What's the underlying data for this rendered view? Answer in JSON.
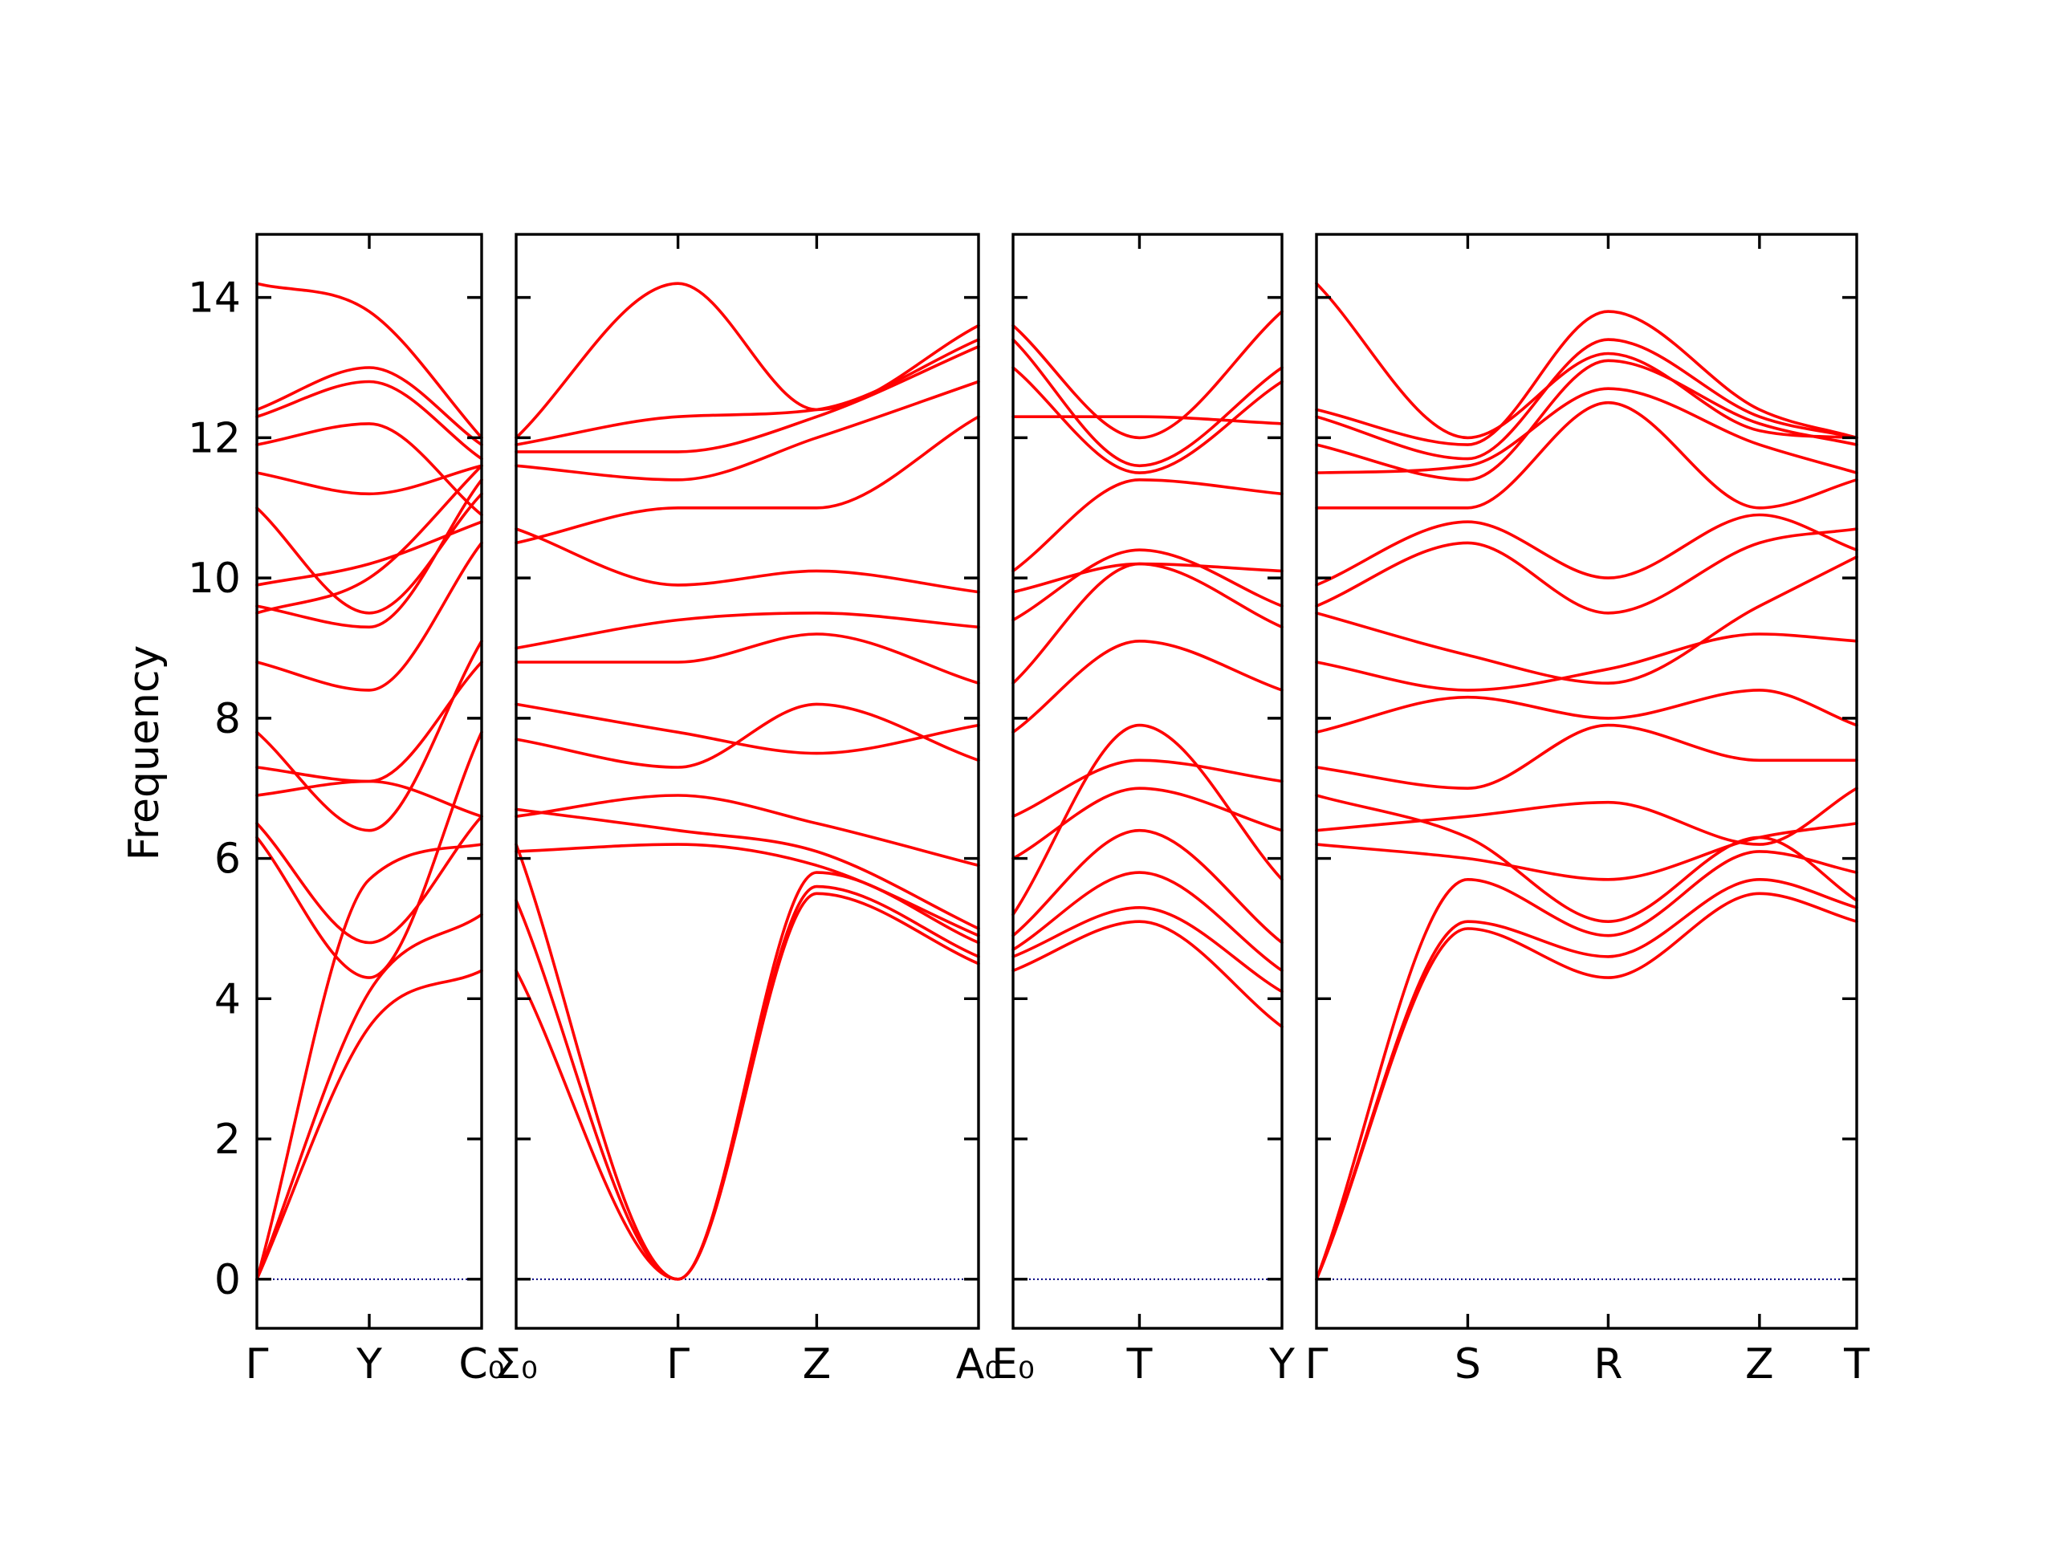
{
  "chart_data": {
    "type": "line",
    "ylabel": "Frequency",
    "ylim": [
      -0.7,
      14.9
    ],
    "yticks": [
      0,
      2,
      4,
      6,
      8,
      10,
      12,
      14
    ],
    "grid": false,
    "colors": {
      "band": "#ff0000",
      "zero": "#00007f",
      "axes": "#000000"
    },
    "panels": [
      {
        "labels": [
          "Γ",
          "Y",
          "C₀"
        ],
        "label_positions": [
          0,
          0.5,
          1
        ],
        "tick_positions": [
          0.5
        ],
        "bands": [
          {
            "x": [
              0,
              0.5,
              1
            ],
            "y": [
              0,
              3.6,
              4.4
            ]
          },
          {
            "x": [
              0,
              0.5,
              1
            ],
            "y": [
              0,
              4.1,
              5.2
            ]
          },
          {
            "x": [
              0,
              0.5,
              1
            ],
            "y": [
              0,
              5.7,
              6.2
            ]
          },
          {
            "x": [
              0,
              0.5,
              1
            ],
            "y": [
              6.5,
              4.8,
              6.6
            ]
          },
          {
            "x": [
              0,
              0.5,
              1
            ],
            "y": [
              6.3,
              4.3,
              7.8
            ]
          },
          {
            "x": [
              0,
              0.5,
              1
            ],
            "y": [
              6.9,
              7.1,
              6.6
            ]
          },
          {
            "x": [
              0,
              0.5,
              1
            ],
            "y": [
              7.3,
              7.1,
              8.8
            ]
          },
          {
            "x": [
              0,
              0.5,
              1
            ],
            "y": [
              7.8,
              6.4,
              9.1
            ]
          },
          {
            "x": [
              0,
              0.5,
              1
            ],
            "y": [
              8.8,
              8.4,
              10.5
            ]
          },
          {
            "x": [
              0,
              0.5,
              1
            ],
            "y": [
              9.5,
              10.0,
              11.6
            ]
          },
          {
            "x": [
              0,
              0.5,
              1
            ],
            "y": [
              9.6,
              9.3,
              11.4
            ]
          },
          {
            "x": [
              0,
              0.5,
              1
            ],
            "y": [
              9.9,
              10.2,
              10.8
            ]
          },
          {
            "x": [
              0,
              0.5,
              1
            ],
            "y": [
              11.0,
              9.5,
              11.2
            ]
          },
          {
            "x": [
              0,
              0.5,
              1
            ],
            "y": [
              11.5,
              11.2,
              11.6
            ]
          },
          {
            "x": [
              0,
              0.5,
              1
            ],
            "y": [
              11.9,
              12.2,
              10.9
            ]
          },
          {
            "x": [
              0,
              0.5,
              1
            ],
            "y": [
              12.3,
              12.8,
              11.7
            ]
          },
          {
            "x": [
              0,
              0.5,
              1
            ],
            "y": [
              12.4,
              13.0,
              11.9
            ]
          },
          {
            "x": [
              0,
              0.5,
              1
            ],
            "y": [
              14.2,
              13.8,
              12.0
            ]
          }
        ]
      },
      {
        "labels": [
          "Σ₀",
          "Γ",
          "Z",
          "A₀"
        ],
        "label_positions": [
          0,
          0.35,
          0.65,
          1
        ],
        "tick_positions": [
          0.35,
          0.65
        ],
        "bands": [
          {
            "x": [
              0,
              0.35,
              0.65,
              1
            ],
            "y": [
              4.4,
              0,
              5.5,
              4.5
            ]
          },
          {
            "x": [
              0,
              0.35,
              0.65,
              1
            ],
            "y": [
              5.4,
              0,
              5.6,
              4.6
            ]
          },
          {
            "x": [
              0,
              0.35,
              0.65,
              1
            ],
            "y": [
              6.2,
              0,
              5.8,
              4.8
            ]
          },
          {
            "x": [
              0,
              0.35,
              0.65,
              1
            ],
            "y": [
              6.1,
              6.2,
              5.9,
              4.9
            ]
          },
          {
            "x": [
              0,
              0.35,
              0.65,
              1
            ],
            "y": [
              6.7,
              6.4,
              6.1,
              5.0
            ]
          },
          {
            "x": [
              0,
              0.35,
              0.65,
              1
            ],
            "y": [
              6.6,
              6.9,
              6.5,
              5.9
            ]
          },
          {
            "x": [
              0,
              0.35,
              0.65,
              1
            ],
            "y": [
              7.7,
              7.3,
              8.2,
              7.4
            ]
          },
          {
            "x": [
              0,
              0.35,
              0.65,
              1
            ],
            "y": [
              8.2,
              7.8,
              7.5,
              7.9
            ]
          },
          {
            "x": [
              0,
              0.35,
              0.65,
              1
            ],
            "y": [
              8.8,
              8.8,
              9.2,
              8.5
            ]
          },
          {
            "x": [
              0,
              0.35,
              0.65,
              1
            ],
            "y": [
              9.0,
              9.4,
              9.5,
              9.3
            ]
          },
          {
            "x": [
              0,
              0.35,
              0.65,
              1
            ],
            "y": [
              10.7,
              9.9,
              10.1,
              9.8
            ]
          },
          {
            "x": [
              0,
              0.35,
              0.65,
              1
            ],
            "y": [
              10.5,
              11.0,
              11.0,
              12.3
            ]
          },
          {
            "x": [
              0,
              0.35,
              0.65,
              1
            ],
            "y": [
              11.6,
              11.4,
              12.0,
              12.8
            ]
          },
          {
            "x": [
              0,
              0.35,
              0.65,
              1
            ],
            "y": [
              11.8,
              11.8,
              12.3,
              13.3
            ]
          },
          {
            "x": [
              0,
              0.35,
              0.65,
              1
            ],
            "y": [
              11.9,
              12.3,
              12.4,
              13.4
            ]
          },
          {
            "x": [
              0,
              0.35,
              0.65,
              1
            ],
            "y": [
              12.0,
              14.2,
              12.4,
              13.6
            ]
          }
        ]
      },
      {
        "labels": [
          "E₀",
          "T",
          "Y"
        ],
        "label_positions": [
          0,
          0.47,
          1
        ],
        "tick_positions": [
          0.47
        ],
        "bands": [
          {
            "x": [
              0,
              0.47,
              1
            ],
            "y": [
              4.4,
              5.1,
              3.6
            ]
          },
          {
            "x": [
              0,
              0.47,
              1
            ],
            "y": [
              4.6,
              5.3,
              4.1
            ]
          },
          {
            "x": [
              0,
              0.47,
              1
            ],
            "y": [
              4.7,
              5.8,
              4.4
            ]
          },
          {
            "x": [
              0,
              0.47,
              1
            ],
            "y": [
              4.9,
              6.4,
              4.8
            ]
          },
          {
            "x": [
              0,
              0.47,
              1
            ],
            "y": [
              5.2,
              7.9,
              5.7
            ]
          },
          {
            "x": [
              0,
              0.47,
              1
            ],
            "y": [
              6.0,
              7.0,
              6.4
            ]
          },
          {
            "x": [
              0,
              0.47,
              1
            ],
            "y": [
              6.6,
              7.4,
              7.1
            ]
          },
          {
            "x": [
              0,
              0.47,
              1
            ],
            "y": [
              7.8,
              9.1,
              8.4
            ]
          },
          {
            "x": [
              0,
              0.47,
              1
            ],
            "y": [
              8.5,
              10.2,
              9.3
            ]
          },
          {
            "x": [
              0,
              0.47,
              1
            ],
            "y": [
              9.4,
              10.4,
              9.6
            ]
          },
          {
            "x": [
              0,
              0.47,
              1
            ],
            "y": [
              9.8,
              10.2,
              10.1
            ]
          },
          {
            "x": [
              0,
              0.47,
              1
            ],
            "y": [
              10.1,
              11.4,
              11.2
            ]
          },
          {
            "x": [
              0,
              0.47,
              1
            ],
            "y": [
              12.3,
              12.3,
              12.2
            ]
          },
          {
            "x": [
              0,
              0.47,
              1
            ],
            "y": [
              13.0,
              11.5,
              12.8
            ]
          },
          {
            "x": [
              0,
              0.47,
              1
            ],
            "y": [
              13.4,
              11.6,
              13.0
            ]
          },
          {
            "x": [
              0,
              0.47,
              1
            ],
            "y": [
              13.6,
              12.0,
              13.8
            ]
          }
        ]
      },
      {
        "labels": [
          "Γ",
          "S",
          "R",
          "Z",
          "T"
        ],
        "label_positions": [
          0,
          0.28,
          0.54,
          0.82,
          1
        ],
        "tick_positions": [
          0.28,
          0.54,
          0.82
        ],
        "bands": [
          {
            "x": [
              0,
              0.28,
              0.54,
              0.82,
              1
            ],
            "y": [
              0,
              5.0,
              4.3,
              5.5,
              5.1
            ]
          },
          {
            "x": [
              0,
              0.28,
              0.54,
              0.82,
              1
            ],
            "y": [
              0,
              5.1,
              4.6,
              5.7,
              5.3
            ]
          },
          {
            "x": [
              0,
              0.28,
              0.54,
              0.82,
              1
            ],
            "y": [
              0,
              5.7,
              4.9,
              6.1,
              5.8
            ]
          },
          {
            "x": [
              0,
              0.28,
              0.54,
              0.82,
              1
            ],
            "y": [
              6.2,
              6.0,
              5.7,
              6.3,
              6.5
            ]
          },
          {
            "x": [
              0,
              0.28,
              0.54,
              0.82,
              1
            ],
            "y": [
              6.4,
              6.6,
              6.8,
              6.2,
              7.0
            ]
          },
          {
            "x": [
              0,
              0.28,
              0.54,
              0.82,
              1
            ],
            "y": [
              6.9,
              6.3,
              5.1,
              6.3,
              5.4
            ]
          },
          {
            "x": [
              0,
              0.28,
              0.54,
              0.82,
              1
            ],
            "y": [
              7.3,
              7.0,
              7.9,
              7.4,
              7.4
            ]
          },
          {
            "x": [
              0,
              0.28,
              0.54,
              0.82,
              1
            ],
            "y": [
              7.8,
              8.3,
              8.0,
              8.4,
              7.9
            ]
          },
          {
            "x": [
              0,
              0.28,
              0.54,
              0.82,
              1
            ],
            "y": [
              8.8,
              8.4,
              8.7,
              9.2,
              9.1
            ]
          },
          {
            "x": [
              0,
              0.28,
              0.54,
              0.82,
              1
            ],
            "y": [
              9.5,
              8.9,
              8.5,
              9.6,
              10.3
            ]
          },
          {
            "x": [
              0,
              0.28,
              0.54,
              0.82,
              1
            ],
            "y": [
              9.6,
              10.5,
              9.5,
              10.5,
              10.7
            ]
          },
          {
            "x": [
              0,
              0.28,
              0.54,
              0.82,
              1
            ],
            "y": [
              9.9,
              10.8,
              10.0,
              10.9,
              10.4
            ]
          },
          {
            "x": [
              0,
              0.28,
              0.54,
              0.82,
              1
            ],
            "y": [
              11.0,
              11.0,
              12.5,
              11.0,
              11.4
            ]
          },
          {
            "x": [
              0,
              0.28,
              0.54,
              0.82,
              1
            ],
            "y": [
              11.5,
              11.6,
              12.7,
              11.9,
              11.5
            ]
          },
          {
            "x": [
              0,
              0.28,
              0.54,
              0.82,
              1
            ],
            "y": [
              11.9,
              11.4,
              13.1,
              12.2,
              11.9
            ]
          },
          {
            "x": [
              0,
              0.28,
              0.54,
              0.82,
              1
            ],
            "y": [
              12.3,
              11.7,
              13.4,
              12.3,
              12.0
            ]
          },
          {
            "x": [
              0,
              0.28,
              0.54,
              0.82,
              1
            ],
            "y": [
              12.4,
              11.9,
              13.8,
              12.4,
              12.0
            ]
          },
          {
            "x": [
              0,
              0.28,
              0.54,
              0.82,
              1
            ],
            "y": [
              14.2,
              12.0,
              13.2,
              12.1,
              12.0
            ]
          }
        ]
      }
    ]
  }
}
